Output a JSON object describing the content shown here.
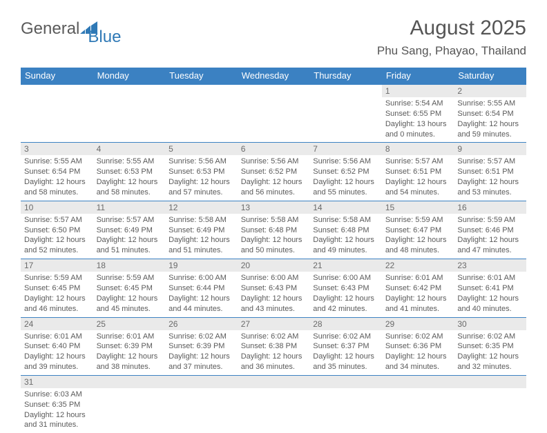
{
  "logo": {
    "general": "General",
    "blue": "Blue"
  },
  "title": {
    "month": "August 2025",
    "location": "Phu Sang, Phayao, Thailand"
  },
  "colors": {
    "header_bg": "#3b81c2",
    "accent": "#2f79b6",
    "text": "#555555",
    "daynum_bg": "#eaeaea"
  },
  "weekdays": [
    "Sunday",
    "Monday",
    "Tuesday",
    "Wednesday",
    "Thursday",
    "Friday",
    "Saturday"
  ],
  "weeks": [
    [
      null,
      null,
      null,
      null,
      null,
      {
        "n": "1",
        "sr": "Sunrise: 5:54 AM",
        "ss": "Sunset: 6:55 PM",
        "dl": "Daylight: 13 hours and 0 minutes."
      },
      {
        "n": "2",
        "sr": "Sunrise: 5:55 AM",
        "ss": "Sunset: 6:54 PM",
        "dl": "Daylight: 12 hours and 59 minutes."
      }
    ],
    [
      {
        "n": "3",
        "sr": "Sunrise: 5:55 AM",
        "ss": "Sunset: 6:54 PM",
        "dl": "Daylight: 12 hours and 58 minutes."
      },
      {
        "n": "4",
        "sr": "Sunrise: 5:55 AM",
        "ss": "Sunset: 6:53 PM",
        "dl": "Daylight: 12 hours and 58 minutes."
      },
      {
        "n": "5",
        "sr": "Sunrise: 5:56 AM",
        "ss": "Sunset: 6:53 PM",
        "dl": "Daylight: 12 hours and 57 minutes."
      },
      {
        "n": "6",
        "sr": "Sunrise: 5:56 AM",
        "ss": "Sunset: 6:52 PM",
        "dl": "Daylight: 12 hours and 56 minutes."
      },
      {
        "n": "7",
        "sr": "Sunrise: 5:56 AM",
        "ss": "Sunset: 6:52 PM",
        "dl": "Daylight: 12 hours and 55 minutes."
      },
      {
        "n": "8",
        "sr": "Sunrise: 5:57 AM",
        "ss": "Sunset: 6:51 PM",
        "dl": "Daylight: 12 hours and 54 minutes."
      },
      {
        "n": "9",
        "sr": "Sunrise: 5:57 AM",
        "ss": "Sunset: 6:51 PM",
        "dl": "Daylight: 12 hours and 53 minutes."
      }
    ],
    [
      {
        "n": "10",
        "sr": "Sunrise: 5:57 AM",
        "ss": "Sunset: 6:50 PM",
        "dl": "Daylight: 12 hours and 52 minutes."
      },
      {
        "n": "11",
        "sr": "Sunrise: 5:57 AM",
        "ss": "Sunset: 6:49 PM",
        "dl": "Daylight: 12 hours and 51 minutes."
      },
      {
        "n": "12",
        "sr": "Sunrise: 5:58 AM",
        "ss": "Sunset: 6:49 PM",
        "dl": "Daylight: 12 hours and 51 minutes."
      },
      {
        "n": "13",
        "sr": "Sunrise: 5:58 AM",
        "ss": "Sunset: 6:48 PM",
        "dl": "Daylight: 12 hours and 50 minutes."
      },
      {
        "n": "14",
        "sr": "Sunrise: 5:58 AM",
        "ss": "Sunset: 6:48 PM",
        "dl": "Daylight: 12 hours and 49 minutes."
      },
      {
        "n": "15",
        "sr": "Sunrise: 5:59 AM",
        "ss": "Sunset: 6:47 PM",
        "dl": "Daylight: 12 hours and 48 minutes."
      },
      {
        "n": "16",
        "sr": "Sunrise: 5:59 AM",
        "ss": "Sunset: 6:46 PM",
        "dl": "Daylight: 12 hours and 47 minutes."
      }
    ],
    [
      {
        "n": "17",
        "sr": "Sunrise: 5:59 AM",
        "ss": "Sunset: 6:45 PM",
        "dl": "Daylight: 12 hours and 46 minutes."
      },
      {
        "n": "18",
        "sr": "Sunrise: 5:59 AM",
        "ss": "Sunset: 6:45 PM",
        "dl": "Daylight: 12 hours and 45 minutes."
      },
      {
        "n": "19",
        "sr": "Sunrise: 6:00 AM",
        "ss": "Sunset: 6:44 PM",
        "dl": "Daylight: 12 hours and 44 minutes."
      },
      {
        "n": "20",
        "sr": "Sunrise: 6:00 AM",
        "ss": "Sunset: 6:43 PM",
        "dl": "Daylight: 12 hours and 43 minutes."
      },
      {
        "n": "21",
        "sr": "Sunrise: 6:00 AM",
        "ss": "Sunset: 6:43 PM",
        "dl": "Daylight: 12 hours and 42 minutes."
      },
      {
        "n": "22",
        "sr": "Sunrise: 6:01 AM",
        "ss": "Sunset: 6:42 PM",
        "dl": "Daylight: 12 hours and 41 minutes."
      },
      {
        "n": "23",
        "sr": "Sunrise: 6:01 AM",
        "ss": "Sunset: 6:41 PM",
        "dl": "Daylight: 12 hours and 40 minutes."
      }
    ],
    [
      {
        "n": "24",
        "sr": "Sunrise: 6:01 AM",
        "ss": "Sunset: 6:40 PM",
        "dl": "Daylight: 12 hours and 39 minutes."
      },
      {
        "n": "25",
        "sr": "Sunrise: 6:01 AM",
        "ss": "Sunset: 6:39 PM",
        "dl": "Daylight: 12 hours and 38 minutes."
      },
      {
        "n": "26",
        "sr": "Sunrise: 6:02 AM",
        "ss": "Sunset: 6:39 PM",
        "dl": "Daylight: 12 hours and 37 minutes."
      },
      {
        "n": "27",
        "sr": "Sunrise: 6:02 AM",
        "ss": "Sunset: 6:38 PM",
        "dl": "Daylight: 12 hours and 36 minutes."
      },
      {
        "n": "28",
        "sr": "Sunrise: 6:02 AM",
        "ss": "Sunset: 6:37 PM",
        "dl": "Daylight: 12 hours and 35 minutes."
      },
      {
        "n": "29",
        "sr": "Sunrise: 6:02 AM",
        "ss": "Sunset: 6:36 PM",
        "dl": "Daylight: 12 hours and 34 minutes."
      },
      {
        "n": "30",
        "sr": "Sunrise: 6:02 AM",
        "ss": "Sunset: 6:35 PM",
        "dl": "Daylight: 12 hours and 32 minutes."
      }
    ],
    [
      {
        "n": "31",
        "sr": "Sunrise: 6:03 AM",
        "ss": "Sunset: 6:35 PM",
        "dl": "Daylight: 12 hours and 31 minutes."
      },
      null,
      null,
      null,
      null,
      null,
      null
    ]
  ]
}
